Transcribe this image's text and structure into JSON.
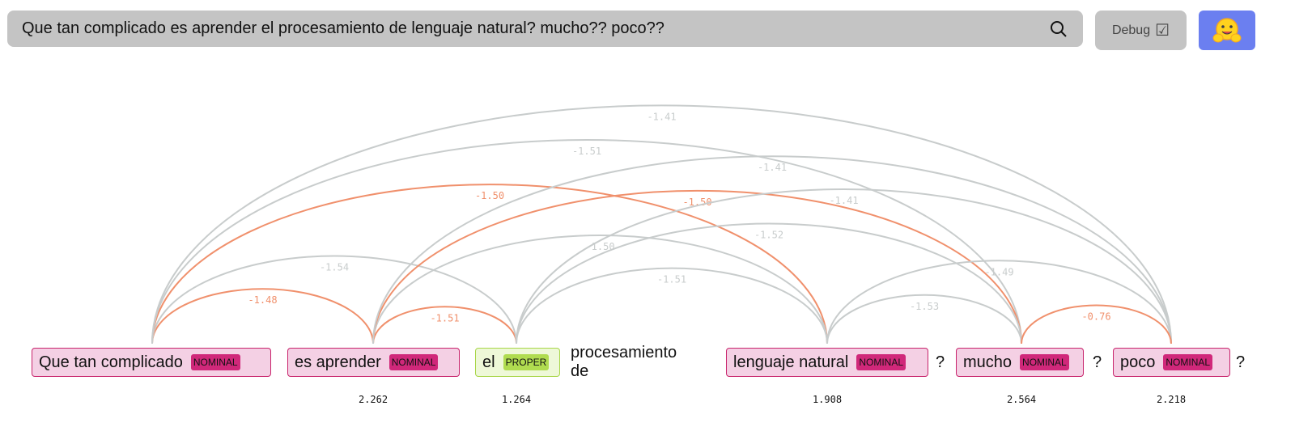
{
  "search": {
    "value": "Que tan complicado es aprender el procesamiento de lenguaje natural? mucho?? poco??",
    "icon": "search-icon"
  },
  "debug": {
    "label": "Debug",
    "checkbox": "☑"
  },
  "logo": {
    "icon": "hugging-face-logo"
  },
  "colors": {
    "nominal_bg": "#f4d0e4",
    "nominal_border": "#c8246c",
    "proper_bg": "#eef8d8",
    "proper_border": "#a8d648",
    "arc_coref": "#f0906c",
    "arc_other": "#c8cccc",
    "logo_bg": "#6b7ff0"
  },
  "tokens": [
    {
      "type": "mention",
      "text": "Que tan complicado",
      "tag": "NOMINAL",
      "score": null
    },
    {
      "type": "mention",
      "text": "es aprender",
      "tag": "NOMINAL",
      "score": "2.262"
    },
    {
      "type": "mention",
      "text": "el",
      "tag": "PROPER",
      "score": "1.264"
    },
    {
      "type": "text",
      "text": "procesamiento de"
    },
    {
      "type": "mention",
      "text": "lenguaje natural",
      "tag": "NOMINAL",
      "score": "1.908"
    },
    {
      "type": "text",
      "text": "?"
    },
    {
      "type": "mention",
      "text": "mucho",
      "tag": "NOMINAL",
      "score": "2.564"
    },
    {
      "type": "text",
      "text": "?"
    },
    {
      "type": "mention",
      "text": "poco",
      "tag": "NOMINAL",
      "score": "2.218"
    },
    {
      "type": "text",
      "text": "?"
    }
  ],
  "arcs": [
    {
      "from": 0,
      "to": 1,
      "score": "-1.48",
      "coref": true
    },
    {
      "from": 1,
      "to": 2,
      "score": "-1.51",
      "coref": true
    },
    {
      "from": 0,
      "to": 2,
      "score": "-1.54",
      "coref": false
    },
    {
      "from": 0,
      "to": 4,
      "score": "-1.50",
      "coref": true
    },
    {
      "from": 0,
      "to": 6,
      "score": "-1.51",
      "coref": false
    },
    {
      "from": 0,
      "to": 8,
      "score": "-1.41",
      "coref": false
    },
    {
      "from": 1,
      "to": 4,
      "score": "-1.50",
      "coref": false
    },
    {
      "from": 1,
      "to": 6,
      "score": "-1.50",
      "coref": true
    },
    {
      "from": 1,
      "to": 8,
      "score": "-1.41",
      "coref": false
    },
    {
      "from": 2,
      "to": 4,
      "score": "-1.51",
      "coref": false
    },
    {
      "from": 2,
      "to": 6,
      "score": "-1.52",
      "coref": false
    },
    {
      "from": 2,
      "to": 8,
      "score": "-1.41",
      "coref": false
    },
    {
      "from": 4,
      "to": 6,
      "score": "-1.53",
      "coref": false
    },
    {
      "from": 4,
      "to": 8,
      "score": "-1.49",
      "coref": false
    },
    {
      "from": 6,
      "to": 8,
      "score": "-0.76",
      "coref": true
    }
  ]
}
